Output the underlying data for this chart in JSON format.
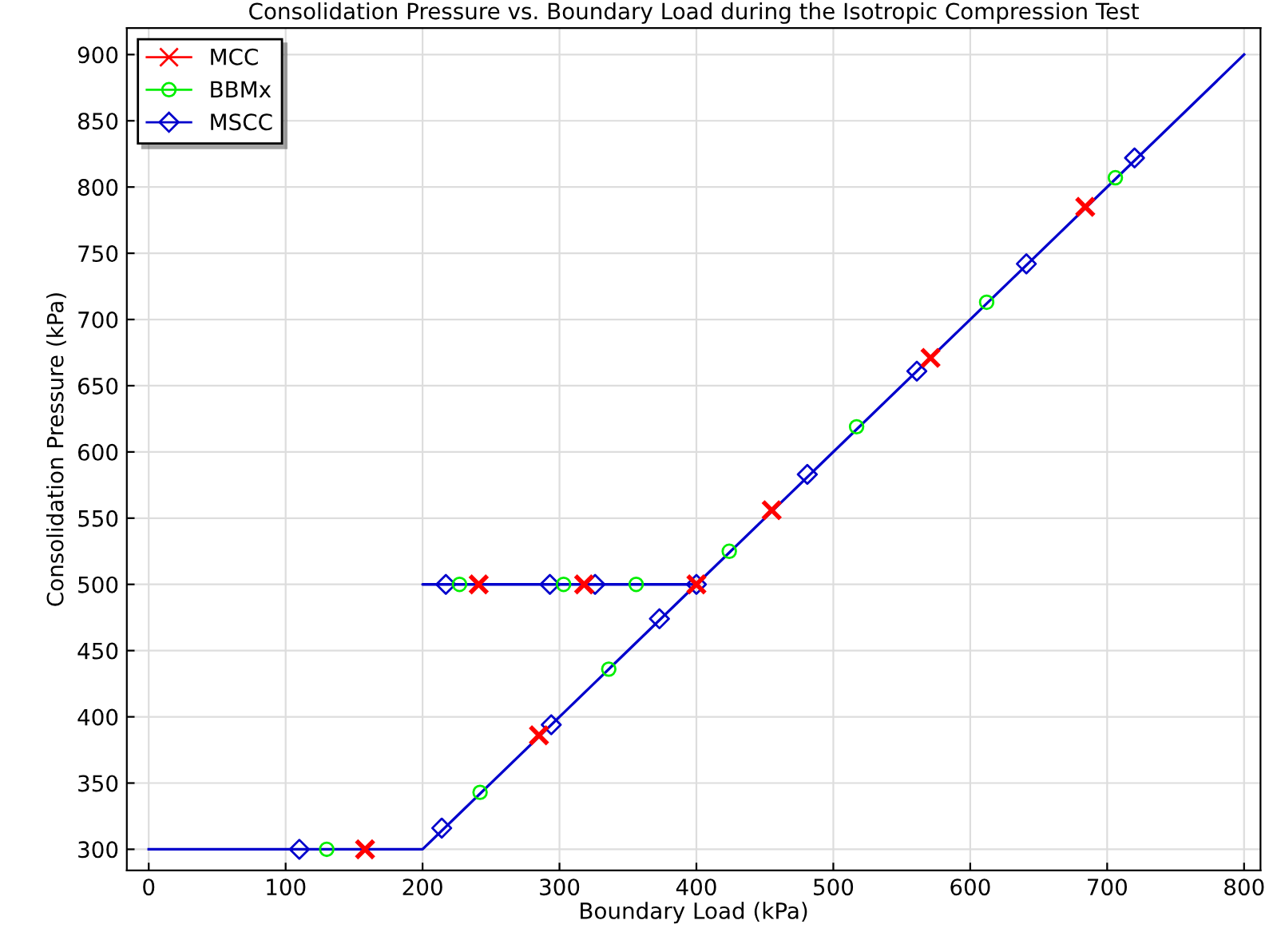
{
  "chart_data": {
    "type": "line",
    "title": "Consolidation Pressure vs. Boundary Load during the Isotropic Compression Test",
    "xlabel": "Boundary Load (kPa)",
    "ylabel": "Consolidation Pressure (kPa)",
    "xlim": [
      -16,
      812
    ],
    "ylim": [
      284,
      920
    ],
    "xticks": [
      0,
      100,
      200,
      300,
      400,
      500,
      600,
      700,
      800
    ],
    "yticks": [
      300,
      350,
      400,
      450,
      500,
      550,
      600,
      650,
      700,
      750,
      800,
      850,
      900
    ],
    "grid": true,
    "legend": "top left",
    "series": [
      {
        "color": "#0000cc",
        "marker": "none",
        "x": [
          0,
          200,
          400,
          200,
          400,
          800
        ],
        "values": [
          300,
          300,
          500,
          500,
          500,
          900
        ]
      },
      {
        "type": "scatter",
        "name": "MCC",
        "color": "#ff0000",
        "marker": "cross",
        "x": [
          158,
          285,
          400,
          318,
          241,
          455,
          571,
          684
        ],
        "values": [
          300,
          386,
          500,
          500,
          500,
          556,
          671,
          785
        ]
      },
      {
        "type": "scatter",
        "name": "BBMx",
        "color": "#00ee00",
        "marker": "circle",
        "x": [
          130,
          242,
          336,
          356,
          303,
          227,
          424,
          517,
          612,
          706
        ],
        "values": [
          300,
          343,
          436,
          500,
          500,
          500,
          525,
          619,
          713,
          807
        ]
      },
      {
        "type": "scatter",
        "name": "MSCC",
        "color": "#0000cc",
        "marker": "diamond",
        "x": [
          110,
          214,
          294,
          373,
          400,
          326,
          293,
          217,
          481,
          561,
          641,
          720
        ],
        "values": [
          300,
          316,
          394,
          474,
          500,
          500,
          500,
          500,
          583,
          661,
          742,
          822
        ]
      }
    ]
  }
}
